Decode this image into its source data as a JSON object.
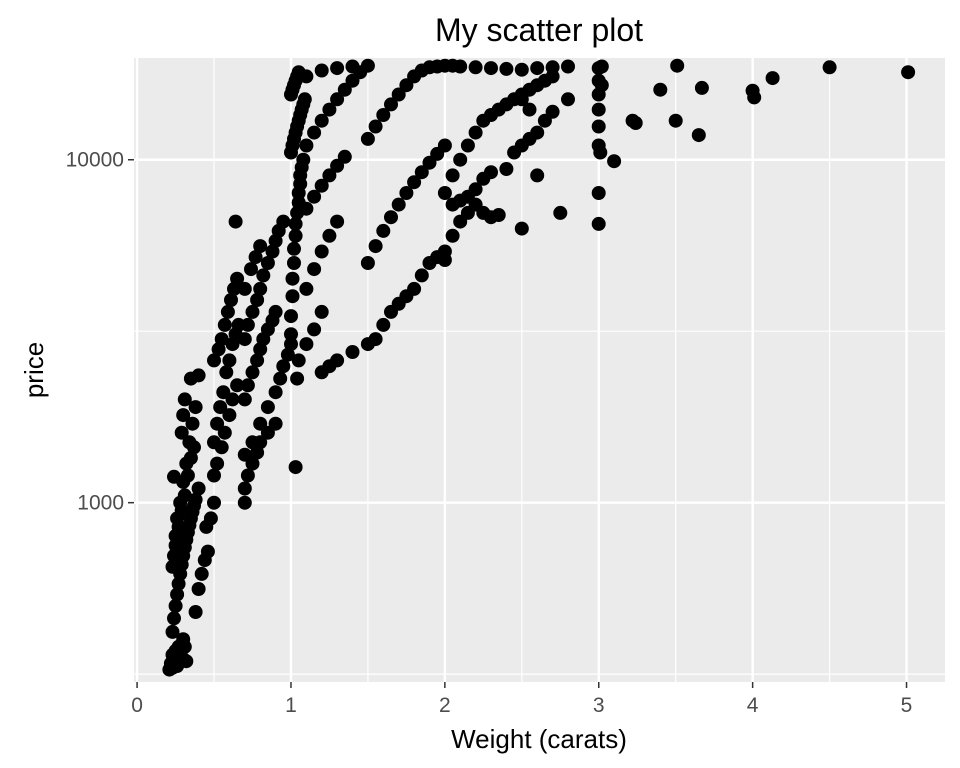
{
  "chart_data": {
    "type": "scatter",
    "title": "My scatter plot",
    "xlabel": "Weight (carats)",
    "ylabel": "price",
    "xlim": [
      -0.02,
      5.25
    ],
    "ylim": [
      300,
      19800
    ],
    "y_scale": "log10",
    "x_ticks": [
      0,
      1,
      2,
      3,
      4,
      5
    ],
    "x_tick_labels": [
      "0",
      "1",
      "2",
      "3",
      "4",
      "5"
    ],
    "y_ticks": [
      1000,
      10000
    ],
    "y_tick_labels": [
      "1000",
      "10000"
    ],
    "grid": true,
    "legend": "none",
    "colors": {
      "panel": "#ebebeb",
      "grid": "#ffffff",
      "points": "#000000"
    },
    "points": [
      [
        0.21,
        326
      ],
      [
        0.22,
        340
      ],
      [
        0.23,
        330
      ],
      [
        0.23,
        360
      ],
      [
        0.24,
        345
      ],
      [
        0.25,
        370
      ],
      [
        0.26,
        334
      ],
      [
        0.27,
        380
      ],
      [
        0.28,
        345
      ],
      [
        0.3,
        350
      ],
      [
        0.3,
        400
      ],
      [
        0.31,
        380
      ],
      [
        0.32,
        345
      ],
      [
        0.23,
        420
      ],
      [
        0.24,
        460
      ],
      [
        0.25,
        500
      ],
      [
        0.26,
        540
      ],
      [
        0.27,
        580
      ],
      [
        0.28,
        620
      ],
      [
        0.29,
        660
      ],
      [
        0.3,
        700
      ],
      [
        0.31,
        740
      ],
      [
        0.32,
        780
      ],
      [
        0.33,
        820
      ],
      [
        0.34,
        860
      ],
      [
        0.35,
        900
      ],
      [
        0.36,
        940
      ],
      [
        0.37,
        980
      ],
      [
        0.38,
        1020
      ],
      [
        0.4,
        1100
      ],
      [
        0.24,
        700
      ],
      [
        0.25,
        800
      ],
      [
        0.26,
        900
      ],
      [
        0.28,
        1000
      ],
      [
        0.3,
        1150
      ],
      [
        0.32,
        1300
      ],
      [
        0.34,
        1500
      ],
      [
        0.36,
        1700
      ],
      [
        0.38,
        1900
      ],
      [
        0.23,
        650
      ],
      [
        0.25,
        750
      ],
      [
        0.27,
        850
      ],
      [
        0.29,
        950
      ],
      [
        0.31,
        1050
      ],
      [
        0.33,
        1200
      ],
      [
        0.35,
        1350
      ],
      [
        0.37,
        1450
      ],
      [
        0.24,
        1190
      ],
      [
        0.29,
        1600
      ],
      [
        0.3,
        1800
      ],
      [
        0.31,
        2000
      ],
      [
        0.35,
        2300
      ],
      [
        0.4,
        2350
      ],
      [
        0.38,
        480
      ],
      [
        0.4,
        560
      ],
      [
        0.42,
        620
      ],
      [
        0.44,
        680
      ],
      [
        0.46,
        720
      ],
      [
        0.45,
        850
      ],
      [
        0.48,
        900
      ],
      [
        0.5,
        1000
      ],
      [
        0.5,
        1200
      ],
      [
        0.52,
        1300
      ],
      [
        0.55,
        1450
      ],
      [
        0.57,
        1600
      ],
      [
        0.6,
        1800
      ],
      [
        0.62,
        2000
      ],
      [
        0.65,
        2200
      ],
      [
        0.5,
        1500
      ],
      [
        0.52,
        1700
      ],
      [
        0.54,
        1900
      ],
      [
        0.56,
        2100
      ],
      [
        0.58,
        2400
      ],
      [
        0.6,
        2600
      ],
      [
        0.62,
        2900
      ],
      [
        0.64,
        3100
      ],
      [
        0.66,
        3300
      ],
      [
        0.5,
        2600
      ],
      [
        0.53,
        2800
      ],
      [
        0.55,
        3000
      ],
      [
        0.57,
        3300
      ],
      [
        0.59,
        3600
      ],
      [
        0.61,
        3900
      ],
      [
        0.63,
        4200
      ],
      [
        0.65,
        4500
      ],
      [
        0.7,
        1000
      ],
      [
        0.7,
        1100
      ],
      [
        0.72,
        1200
      ],
      [
        0.75,
        1300
      ],
      [
        0.78,
        1400
      ],
      [
        0.8,
        1500
      ],
      [
        0.85,
        1600
      ],
      [
        0.9,
        1700
      ],
      [
        0.7,
        2000
      ],
      [
        0.72,
        2200
      ],
      [
        0.75,
        2400
      ],
      [
        0.78,
        2600
      ],
      [
        0.8,
        2800
      ],
      [
        0.82,
        3000
      ],
      [
        0.85,
        3200
      ],
      [
        0.88,
        3400
      ],
      [
        0.9,
        3600
      ],
      [
        0.7,
        3000
      ],
      [
        0.72,
        3300
      ],
      [
        0.75,
        3600
      ],
      [
        0.78,
        3900
      ],
      [
        0.8,
        4200
      ],
      [
        0.82,
        4600
      ],
      [
        0.85,
        5000
      ],
      [
        0.88,
        5400
      ],
      [
        0.9,
        5800
      ],
      [
        0.92,
        6200
      ],
      [
        0.95,
        6600
      ],
      [
        0.64,
        6600
      ],
      [
        0.7,
        4200
      ],
      [
        0.74,
        4800
      ],
      [
        0.77,
        5200
      ],
      [
        0.8,
        5600
      ],
      [
        0.7,
        1380
      ],
      [
        0.75,
        1500
      ],
      [
        0.8,
        1700
      ],
      [
        0.85,
        1900
      ],
      [
        0.9,
        2100
      ],
      [
        0.93,
        2300
      ],
      [
        0.95,
        2500
      ],
      [
        0.98,
        2700
      ],
      [
        1.0,
        2900
      ],
      [
        1.0,
        3100
      ],
      [
        1.0,
        3500
      ],
      [
        1.01,
        4000
      ],
      [
        1.01,
        4500
      ],
      [
        1.02,
        5000
      ],
      [
        1.02,
        5500
      ],
      [
        1.03,
        6000
      ],
      [
        1.03,
        6500
      ],
      [
        1.04,
        7000
      ],
      [
        1.05,
        7500
      ],
      [
        1.05,
        8000
      ],
      [
        1.06,
        8500
      ],
      [
        1.06,
        9000
      ],
      [
        1.07,
        9500
      ],
      [
        1.08,
        10000
      ],
      [
        1.0,
        10500
      ],
      [
        1.01,
        11000
      ],
      [
        1.02,
        11500
      ],
      [
        1.03,
        12000
      ],
      [
        1.04,
        12500
      ],
      [
        1.05,
        13000
      ],
      [
        1.06,
        13500
      ],
      [
        1.07,
        14000
      ],
      [
        1.08,
        14500
      ],
      [
        1.09,
        15000
      ],
      [
        1.0,
        15500
      ],
      [
        1.01,
        16000
      ],
      [
        1.02,
        16500
      ],
      [
        1.03,
        17000
      ],
      [
        1.04,
        17500
      ],
      [
        1.05,
        18000
      ],
      [
        1.03,
        1270
      ],
      [
        1.04,
        2300
      ],
      [
        1.05,
        2600
      ],
      [
        1.1,
        2900
      ],
      [
        1.15,
        3200
      ],
      [
        1.2,
        3600
      ],
      [
        1.1,
        4200
      ],
      [
        1.15,
        4800
      ],
      [
        1.2,
        5400
      ],
      [
        1.25,
        6000
      ],
      [
        1.3,
        6600
      ],
      [
        1.1,
        7200
      ],
      [
        1.15,
        7800
      ],
      [
        1.2,
        8400
      ],
      [
        1.25,
        9000
      ],
      [
        1.3,
        9600
      ],
      [
        1.35,
        10200
      ],
      [
        1.1,
        11000
      ],
      [
        1.15,
        12000
      ],
      [
        1.2,
        13000
      ],
      [
        1.25,
        14000
      ],
      [
        1.3,
        15000
      ],
      [
        1.35,
        16000
      ],
      [
        1.4,
        17000
      ],
      [
        1.45,
        18000
      ],
      [
        1.1,
        17500
      ],
      [
        1.2,
        18200
      ],
      [
        1.3,
        18500
      ],
      [
        1.4,
        18700
      ],
      [
        1.5,
        18800
      ],
      [
        1.2,
        2400
      ],
      [
        1.25,
        2500
      ],
      [
        1.3,
        2600
      ],
      [
        1.4,
        2750
      ],
      [
        1.5,
        2900
      ],
      [
        1.55,
        3000
      ],
      [
        1.6,
        3300
      ],
      [
        1.65,
        3600
      ],
      [
        1.7,
        3800
      ],
      [
        1.75,
        4000
      ],
      [
        1.8,
        4200
      ],
      [
        1.85,
        4600
      ],
      [
        1.9,
        5000
      ],
      [
        1.95,
        5200
      ],
      [
        2.0,
        5100
      ],
      [
        1.5,
        5000
      ],
      [
        1.55,
        5600
      ],
      [
        1.6,
        6200
      ],
      [
        1.65,
        6800
      ],
      [
        1.7,
        7400
      ],
      [
        1.75,
        8000
      ],
      [
        1.8,
        8600
      ],
      [
        1.85,
        9200
      ],
      [
        1.9,
        9800
      ],
      [
        1.95,
        10400
      ],
      [
        2.0,
        11000
      ],
      [
        1.5,
        11500
      ],
      [
        1.55,
        12500
      ],
      [
        1.6,
        13500
      ],
      [
        1.65,
        14500
      ],
      [
        1.7,
        15500
      ],
      [
        1.75,
        16500
      ],
      [
        1.8,
        17500
      ],
      [
        1.85,
        18200
      ],
      [
        1.9,
        18600
      ],
      [
        1.95,
        18700
      ],
      [
        2.0,
        18800
      ],
      [
        2.05,
        18800
      ],
      [
        2.1,
        18700
      ],
      [
        2.2,
        18600
      ],
      [
        2.3,
        18500
      ],
      [
        2.4,
        18400
      ],
      [
        2.5,
        18300
      ],
      [
        2.6,
        18500
      ],
      [
        2.7,
        18600
      ],
      [
        2.8,
        18700
      ],
      [
        2.0,
        5400
      ],
      [
        2.05,
        6000
      ],
      [
        2.1,
        6600
      ],
      [
        2.15,
        7000
      ],
      [
        2.2,
        7400
      ],
      [
        2.25,
        7000
      ],
      [
        2.3,
        6800
      ],
      [
        2.35,
        6900
      ],
      [
        2.0,
        8000
      ],
      [
        2.05,
        9000
      ],
      [
        2.1,
        10000
      ],
      [
        2.15,
        11000
      ],
      [
        2.2,
        12000
      ],
      [
        2.25,
        13000
      ],
      [
        2.3,
        13500
      ],
      [
        2.35,
        14000
      ],
      [
        2.4,
        14500
      ],
      [
        2.45,
        15000
      ],
      [
        2.5,
        15500
      ],
      [
        2.55,
        16000
      ],
      [
        2.6,
        16500
      ],
      [
        2.65,
        17000
      ],
      [
        2.7,
        17500
      ],
      [
        2.05,
        7400
      ],
      [
        2.1,
        7600
      ],
      [
        2.15,
        7800
      ],
      [
        2.2,
        8200
      ],
      [
        2.25,
        8800
      ],
      [
        2.3,
        9200
      ],
      [
        2.4,
        9400
      ],
      [
        2.45,
        10500
      ],
      [
        2.5,
        6300
      ],
      [
        2.5,
        11000
      ],
      [
        2.55,
        11500
      ],
      [
        2.6,
        12000
      ],
      [
        2.65,
        13000
      ],
      [
        2.7,
        13800
      ],
      [
        2.75,
        7000
      ],
      [
        2.8,
        15000
      ],
      [
        2.5,
        15000
      ],
      [
        2.55,
        14000
      ],
      [
        2.6,
        9000
      ],
      [
        3.0,
        6500
      ],
      [
        3.0,
        8000
      ],
      [
        3.0,
        11000
      ],
      [
        3.0,
        12500
      ],
      [
        3.0,
        14000
      ],
      [
        3.0,
        15500
      ],
      [
        3.0,
        17000
      ],
      [
        3.0,
        18500
      ],
      [
        3.01,
        10500
      ],
      [
        3.02,
        16500
      ],
      [
        3.02,
        18700
      ],
      [
        3.1,
        9900
      ],
      [
        3.22,
        13000
      ],
      [
        3.24,
        12800
      ],
      [
        3.4,
        16000
      ],
      [
        3.5,
        13000
      ],
      [
        3.51,
        18800
      ],
      [
        3.65,
        11800
      ],
      [
        3.67,
        16200
      ],
      [
        4.0,
        15900
      ],
      [
        4.01,
        15200
      ],
      [
        4.13,
        17300
      ],
      [
        4.5,
        18600
      ],
      [
        5.01,
        18000
      ]
    ]
  }
}
